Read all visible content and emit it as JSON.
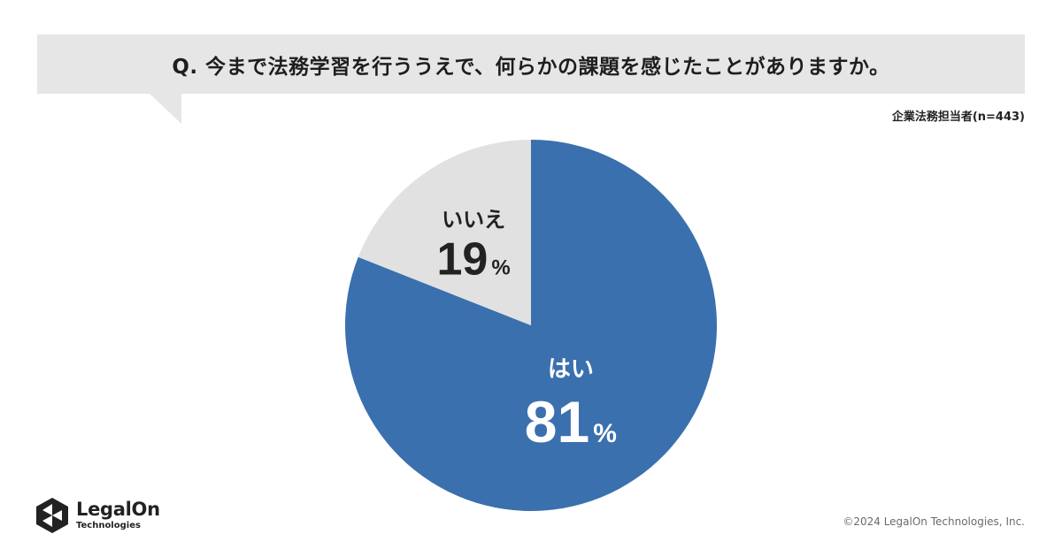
{
  "question": "Q. 今まで法務学習を行ううえで、何らかの課題を感じたことがありますか。",
  "sample_label": "企業法務担当者(n=443)",
  "colors": {
    "yes": "#3a70ad",
    "no": "#e1e1e1",
    "bubble": "#e6e6e6"
  },
  "chart_data": {
    "type": "pie",
    "title": "",
    "slices": [
      {
        "label": "はい",
        "value": 81,
        "display": "81",
        "unit": "%",
        "color": "#3a70ad",
        "text_color": "#ffffff"
      },
      {
        "label": "いいえ",
        "value": 19,
        "display": "19",
        "unit": "%",
        "color": "#e1e1e1",
        "text_color": "#222222"
      }
    ],
    "start": "top",
    "direction": "clockwise"
  },
  "logo": {
    "name": "LegalOn",
    "sub": "Technologies",
    "icon": "legalon-hexagon-logo"
  },
  "copyright": "©2024 LegalOn Technologies, Inc."
}
